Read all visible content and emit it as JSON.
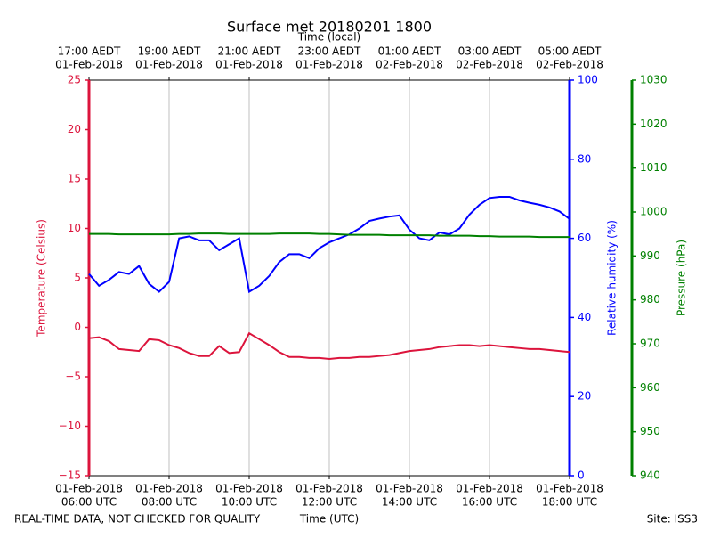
{
  "chart_data": {
    "type": "line",
    "title": "Surface met 20180201 1800",
    "xlabel": "Time (UTC)",
    "x2label": "Time (local)",
    "x": [
      6,
      6.25,
      6.5,
      6.75,
      7,
      7.25,
      7.5,
      7.75,
      8,
      8.25,
      8.5,
      8.75,
      9,
      9.25,
      9.5,
      9.75,
      10,
      10.25,
      10.5,
      10.75,
      11,
      11.25,
      11.5,
      11.75,
      12,
      12.25,
      12.5,
      12.75,
      13,
      13.25,
      13.5,
      13.75,
      14,
      14.25,
      14.5,
      14.75,
      15,
      15.25,
      15.5,
      15.75,
      16,
      16.25,
      16.5,
      16.75,
      17,
      17.25,
      17.5,
      17.75,
      18
    ],
    "xlim": [
      6,
      18
    ],
    "xticks": [
      {
        "value": 6,
        "label": "06:00 UTC",
        "date": "01-Feb-2018"
      },
      {
        "value": 8,
        "label": "08:00 UTC",
        "date": "01-Feb-2018"
      },
      {
        "value": 10,
        "label": "10:00 UTC",
        "date": "01-Feb-2018"
      },
      {
        "value": 12,
        "label": "12:00 UTC",
        "date": "01-Feb-2018"
      },
      {
        "value": 14,
        "label": "14:00 UTC",
        "date": "01-Feb-2018"
      },
      {
        "value": 16,
        "label": "16:00 UTC",
        "date": "01-Feb-2018"
      },
      {
        "value": 18,
        "label": "18:00 UTC",
        "date": "01-Feb-2018"
      }
    ],
    "x2ticks": [
      {
        "value": 6,
        "label": "17:00 AEDT",
        "date": "01-Feb-2018"
      },
      {
        "value": 8,
        "label": "19:00 AEDT",
        "date": "01-Feb-2018"
      },
      {
        "value": 10,
        "label": "21:00 AEDT",
        "date": "01-Feb-2018"
      },
      {
        "value": 12,
        "label": "23:00 AEDT",
        "date": "01-Feb-2018"
      },
      {
        "value": 14,
        "label": "01:00 AEDT",
        "date": "02-Feb-2018"
      },
      {
        "value": 16,
        "label": "03:00 AEDT",
        "date": "02-Feb-2018"
      },
      {
        "value": 18,
        "label": "05:00 AEDT",
        "date": "02-Feb-2018"
      }
    ],
    "grid": "x",
    "ylabel": "Temperature (Celsius)",
    "ylim": [
      -15,
      25
    ],
    "yticks": [
      {
        "value": -15,
        "label": "−15"
      },
      {
        "value": -10,
        "label": "−10"
      },
      {
        "value": -5,
        "label": "−5"
      },
      0,
      5,
      10,
      15,
      20,
      25
    ],
    "y2label": "Relative humidity (%)",
    "y2lim": [
      0,
      100
    ],
    "y2ticks": [
      0,
      20,
      40,
      60,
      80,
      100
    ],
    "y3label": "Pressure (hPa)",
    "y3lim": [
      940,
      1030
    ],
    "y3ticks": [
      940,
      950,
      960,
      970,
      980,
      990,
      1000,
      1010,
      1020,
      1030
    ],
    "series": [
      {
        "name": "Temperature",
        "axis": "y",
        "color": "#dc143c",
        "values": [
          -1.1,
          -1.0,
          -1.4,
          -2.2,
          -2.3,
          -2.4,
          -1.2,
          -1.3,
          -1.8,
          -2.1,
          -2.6,
          -2.9,
          -2.9,
          -1.9,
          -2.6,
          -2.5,
          -0.6,
          -1.2,
          -1.8,
          -2.5,
          -3.0,
          -3.0,
          -3.1,
          -3.1,
          -3.2,
          -3.1,
          -3.1,
          -3.0,
          -3.0,
          -2.9,
          -2.8,
          -2.6,
          -2.4,
          -2.3,
          -2.2,
          -2.0,
          -1.9,
          -1.8,
          -1.8,
          -1.9,
          -1.8,
          -1.9,
          -2.0,
          -2.1,
          -2.2,
          -2.2,
          -2.3,
          -2.4,
          -2.5
        ]
      },
      {
        "name": "Relative humidity",
        "axis": "y2",
        "color": "#0000ff",
        "values": [
          51,
          48,
          49.5,
          51.5,
          51,
          53,
          48.5,
          46.5,
          49,
          60,
          60.5,
          59.5,
          59.5,
          57,
          58.5,
          60,
          46.5,
          48,
          50.5,
          54,
          56,
          56,
          55,
          57.5,
          59,
          60,
          61,
          62.5,
          64.4,
          65,
          65.5,
          65.8,
          62.2,
          60,
          59.5,
          61.5,
          61,
          62.5,
          66,
          68.5,
          70.2,
          70.5,
          70.5,
          69.6,
          69,
          68.5,
          67.8,
          66.8,
          64.9
        ]
      },
      {
        "name": "Pressure",
        "axis": "y3",
        "color": "#008000",
        "values": [
          995.0,
          995.0,
          995.0,
          994.9,
          994.9,
          994.9,
          994.9,
          994.9,
          994.9,
          995.0,
          995.0,
          995.1,
          995.1,
          995.1,
          995.0,
          995.0,
          995.0,
          995.0,
          995.0,
          995.1,
          995.1,
          995.1,
          995.1,
          995.0,
          995.0,
          994.9,
          994.8,
          994.8,
          994.8,
          994.8,
          994.7,
          994.7,
          994.7,
          994.7,
          994.7,
          994.6,
          994.6,
          994.6,
          994.6,
          994.5,
          994.5,
          994.4,
          994.4,
          994.4,
          994.4,
          994.3,
          994.3,
          994.3,
          994.3
        ]
      }
    ]
  },
  "footer": {
    "left": "REAL-TIME DATA, NOT CHECKED FOR QUALITY",
    "right": "Site: ISS3"
  }
}
